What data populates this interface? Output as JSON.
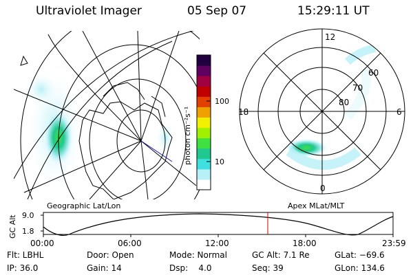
{
  "header": {
    "instrument": "Ultraviolet Imager",
    "date": "05 Sep 07",
    "time": "15:29:11 UT"
  },
  "colorbar": {
    "unit_label": "photon cm⁻²s⁻¹",
    "tick_100": "100",
    "tick_10": "10",
    "colors": [
      "#ffffff",
      "#b8f0f8",
      "#40e0e0",
      "#20c890",
      "#40e040",
      "#a0f000",
      "#f0f000",
      "#f0a000",
      "#e04000",
      "#c00000",
      "#a00040",
      "#600060",
      "#200040"
    ]
  },
  "geo_panel": {
    "caption": "Geographic Lat/Lon"
  },
  "polar_panel": {
    "caption": "Apex MLat/MLT",
    "mlt_top": "12",
    "mlt_bottom": "0",
    "mlt_left": "18",
    "mlt_right": "6",
    "lat_60": "60",
    "lat_70": "70",
    "lat_80": "80"
  },
  "alt_plot": {
    "ylabel": "GC Alt",
    "y_top": "9.0",
    "y_bottom": "1.8",
    "x_ticks": [
      "00:00",
      "06:00",
      "12:00",
      "18:00",
      "23:59"
    ],
    "current_time_color": "#d00000"
  },
  "footer": {
    "filter": "Flt: LBHL",
    "ip": "IP: 36.0",
    "door": "Door: Open",
    "gain": "Gain: 14",
    "mode": "Mode: Normal",
    "dsp": "Dsp:    4.0",
    "gc_alt": "GC Alt: 7.1 Re",
    "seq": "Seq: 39",
    "glat": "GLat: −69.6",
    "glon": "GLon: 134.6"
  }
}
